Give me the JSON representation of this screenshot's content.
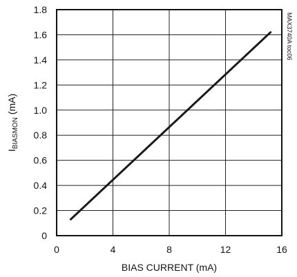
{
  "chart_data": {
    "type": "line",
    "xlabel": "BIAS CURRENT (mA)",
    "ylabel_main": "I",
    "ylabel_sub": "BIASMON",
    "ylabel_unit": " (mA)",
    "xlim": [
      0,
      16
    ],
    "ylim": [
      0,
      1.8
    ],
    "x_ticks": [
      0,
      4,
      8,
      12,
      16
    ],
    "x_tick_labels": [
      "0",
      "4",
      "8",
      "12",
      "16"
    ],
    "y_ticks": [
      0,
      0.2,
      0.4,
      0.6,
      0.8,
      1.0,
      1.2,
      1.4,
      1.6,
      1.8
    ],
    "y_tick_labels": [
      "0",
      "0.2",
      "0.4",
      "0.6",
      "0.8",
      "1.0",
      "1.2",
      "1.4",
      "1.6",
      "1.8"
    ],
    "grid": true,
    "series": [
      {
        "x": [
          1,
          15.2
        ],
        "y": [
          0.13,
          1.62
        ]
      }
    ],
    "annotation": "MAX3740A toc06"
  }
}
